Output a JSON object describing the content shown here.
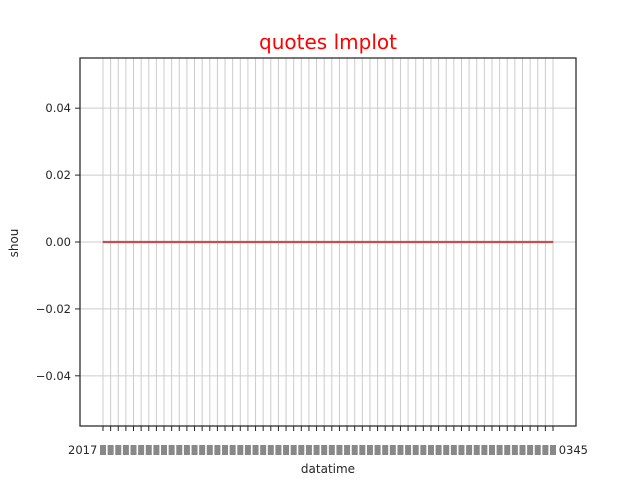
{
  "colors": {
    "title": "#ff0000",
    "series_line": "#c44e52",
    "grid": "#cccccc",
    "axes": "#262626",
    "background": "#ffffff"
  },
  "chart_data": {
    "type": "line",
    "title": "quotes lmplot",
    "xlabel": "datatime",
    "ylabel": "shou",
    "ylim": [
      -0.055,
      0.055
    ],
    "y_ticks": [
      -0.04,
      -0.02,
      0.0,
      0.02,
      0.04
    ],
    "y_tick_labels": [
      "−0.04",
      "−0.02",
      "0.00",
      "0.02",
      "0.04"
    ],
    "x_tick_count": 60,
    "x_tick_labels_visible": [
      "2017",
      "0345"
    ],
    "grid": true,
    "series": [
      {
        "values": [
          0,
          0,
          0,
          0,
          0,
          0,
          0,
          0,
          0,
          0,
          0,
          0,
          0,
          0,
          0,
          0,
          0,
          0,
          0,
          0,
          0,
          0,
          0,
          0,
          0,
          0,
          0,
          0,
          0,
          0,
          0,
          0,
          0,
          0,
          0,
          0,
          0,
          0,
          0,
          0,
          0,
          0,
          0,
          0,
          0,
          0,
          0,
          0,
          0,
          0,
          0,
          0,
          0,
          0,
          0,
          0,
          0,
          0,
          0,
          0
        ]
      }
    ]
  }
}
